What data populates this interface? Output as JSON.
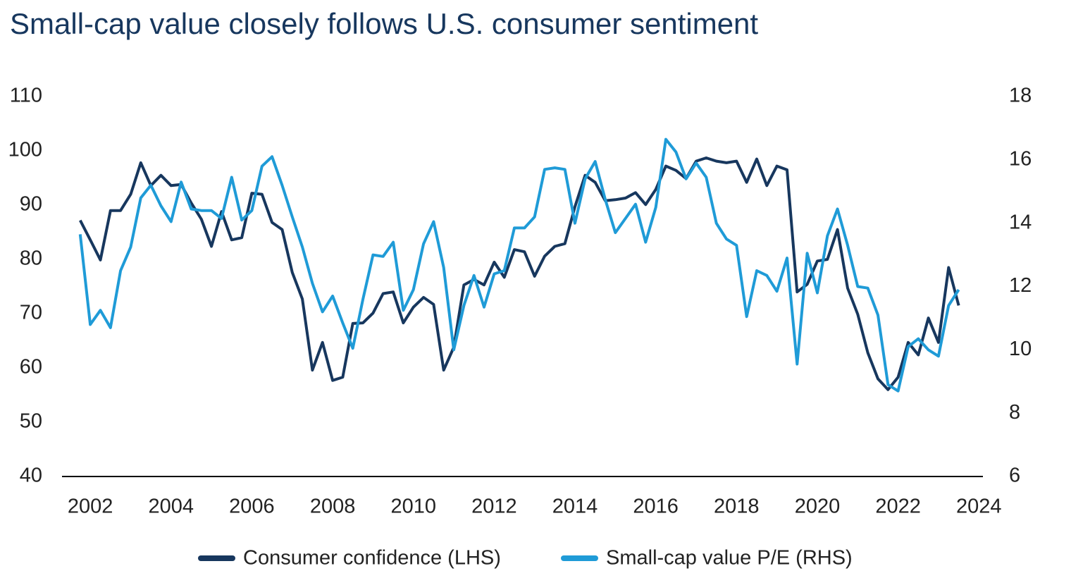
{
  "chart_data": {
    "type": "line",
    "title": "Small-cap value closely follows U.S. consumer sentiment",
    "x": [
      2001.75,
      2002,
      2002.25,
      2002.5,
      2002.75,
      2003,
      2003.25,
      2003.5,
      2003.75,
      2004,
      2004.25,
      2004.5,
      2004.75,
      2005,
      2005.25,
      2005.5,
      2005.75,
      2006,
      2006.25,
      2006.5,
      2006.75,
      2007,
      2007.25,
      2007.5,
      2007.75,
      2008,
      2008.25,
      2008.5,
      2008.75,
      2009,
      2009.25,
      2009.5,
      2009.75,
      2010,
      2010.25,
      2010.5,
      2010.75,
      2011,
      2011.25,
      2011.5,
      2011.75,
      2012,
      2012.25,
      2012.5,
      2012.75,
      2013,
      2013.25,
      2013.5,
      2013.75,
      2014,
      2014.25,
      2014.5,
      2014.75,
      2015,
      2015.25,
      2015.5,
      2015.75,
      2016,
      2016.25,
      2016.5,
      2016.75,
      2017,
      2017.25,
      2017.5,
      2017.75,
      2018,
      2018.25,
      2018.5,
      2018.75,
      2019,
      2019.25,
      2019.5,
      2019.75,
      2020,
      2020.25,
      2020.5,
      2020.75,
      2021,
      2021.25,
      2021.5,
      2021.75,
      2022,
      2022.25,
      2022.5,
      2022.75,
      2023,
      2023.25,
      2023.5
    ],
    "series": [
      {
        "name": "Consumer confidence (LHS)",
        "color": "#17375e",
        "axis": "y",
        "values": [
          87.2,
          83.6,
          79.9,
          89,
          89,
          92,
          97.8,
          93.6,
          95.5,
          93.6,
          93.8,
          90.4,
          87.4,
          82.4,
          88.8,
          83.6,
          84,
          92.2,
          92,
          86.8,
          85.5,
          77.6,
          72.7,
          59.6,
          64.7,
          57.7,
          58.3,
          68.2,
          68.3,
          70.1,
          73.7,
          74,
          68.3,
          71.2,
          73,
          71.7,
          59.6,
          63.8,
          75.3,
          76.3,
          75.3,
          79.5,
          76.7,
          81.8,
          81.4,
          76.9,
          80.6,
          82.4,
          82.9,
          89.7,
          95.5,
          94.2,
          90.8,
          91,
          91.3,
          92.3,
          90.1,
          92.9,
          97.2,
          96.4,
          94.9,
          98.1,
          98.7,
          98.1,
          97.8,
          98.1,
          94.2,
          98.5,
          93.6,
          97.2,
          96.5,
          74,
          75.4,
          79.7,
          80,
          85.5,
          74.7,
          69.9,
          62.8,
          58,
          56,
          58.3,
          64.7,
          62.4,
          69.2,
          64.7,
          78.5,
          71.5
        ]
      },
      {
        "name": "Small-cap value P/E (RHS)",
        "color": "#1f9bd7",
        "axis": "y2",
        "values": [
          13.65,
          10.8,
          11.25,
          10.7,
          12.5,
          13.25,
          14.8,
          15.2,
          14.55,
          14.05,
          15.3,
          14.45,
          14.4,
          14.4,
          14.15,
          15.45,
          14.1,
          14.4,
          15.8,
          16.1,
          15.2,
          14.2,
          13.25,
          12.1,
          11.2,
          11.7,
          10.85,
          10.05,
          11.6,
          13,
          12.95,
          13.4,
          11.25,
          11.9,
          13.35,
          14.05,
          12.6,
          10,
          11.4,
          12.35,
          11.35,
          12.4,
          12.5,
          13.85,
          13.85,
          14.2,
          15.7,
          15.75,
          15.7,
          14,
          15.4,
          15.95,
          14.75,
          13.7,
          14.15,
          14.6,
          13.4,
          14.5,
          16.65,
          16.25,
          15.4,
          15.9,
          15.45,
          14,
          13.5,
          13.3,
          11.05,
          12.5,
          12.35,
          11.85,
          12.9,
          9.55,
          13.05,
          11.8,
          13.6,
          14.45,
          13.3,
          12,
          11.95,
          11.1,
          8.9,
          8.7,
          10.1,
          10.35,
          10,
          9.8,
          11.4,
          11.9
        ]
      }
    ],
    "xlim": [
      2001.3,
      2024.1
    ],
    "xticks": [
      2002,
      2004,
      2006,
      2008,
      2010,
      2012,
      2014,
      2016,
      2018,
      2020,
      2022,
      2024
    ],
    "ylim": [
      40,
      110
    ],
    "yticks": [
      40,
      50,
      60,
      70,
      80,
      90,
      100,
      110
    ],
    "y2lim": [
      6,
      18
    ],
    "y2ticks": [
      6,
      8,
      10,
      12,
      14,
      16,
      18
    ],
    "grid": false
  }
}
